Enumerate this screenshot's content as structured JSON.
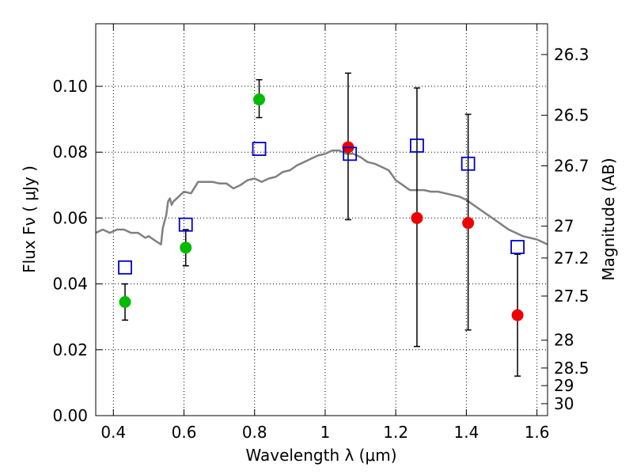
{
  "chart_data": {
    "type": "scatter",
    "xlabel": "Wavelength  λ (μm)",
    "ylabel": "Flux  Fν  ( μJy )",
    "ylabel_right": "Magnitude (AB)",
    "xlim": [
      0.35,
      1.63
    ],
    "ylim": [
      0.0,
      0.119
    ],
    "x_ticks": [
      0.4,
      0.6,
      0.8,
      1.0,
      1.2,
      1.4,
      1.6
    ],
    "x_tick_labels": [
      "0.4",
      "0.6",
      "0.8",
      "1",
      "1.2",
      "1.4",
      "1.6"
    ],
    "y_ticks": [
      0.0,
      0.02,
      0.04,
      0.06,
      0.08,
      0.1
    ],
    "y_tick_labels": [
      "0.00",
      "0.02",
      "0.04",
      "0.06",
      "0.08",
      "0.10"
    ],
    "mag_ticks": [
      26.3,
      26.5,
      26.7,
      27,
      27.2,
      27.5,
      28,
      28.5,
      29,
      30
    ],
    "mag_tick_labels": [
      "26.3",
      "26.5",
      "26.7",
      "27",
      "27.2",
      "27.5",
      "28",
      "28.5",
      "29",
      "30"
    ],
    "grid": true,
    "colors": {
      "model": "#808080",
      "green": "#00bb00",
      "red": "#ee0000",
      "square": "#0000cc"
    },
    "series": [
      {
        "kind": "line",
        "color": "#808080",
        "x": [
          0.35,
          0.37,
          0.39,
          0.41,
          0.43,
          0.45,
          0.47,
          0.49,
          0.5,
          0.52,
          0.535,
          0.54,
          0.55,
          0.555,
          0.56,
          0.565,
          0.57,
          0.6,
          0.62,
          0.64,
          0.66,
          0.68,
          0.7,
          0.72,
          0.74,
          0.76,
          0.78,
          0.8,
          0.82,
          0.84,
          0.86,
          0.88,
          0.9,
          0.92,
          0.94,
          0.96,
          0.98,
          1.0,
          1.02,
          1.04,
          1.06,
          1.08,
          1.1,
          1.12,
          1.14,
          1.16,
          1.18,
          1.2,
          1.22,
          1.24,
          1.26,
          1.28,
          1.3,
          1.32,
          1.34,
          1.36,
          1.38,
          1.4,
          1.42,
          1.44,
          1.46,
          1.48,
          1.5,
          1.52,
          1.54,
          1.56,
          1.58,
          1.6,
          1.63
        ],
        "y": [
          0.0555,
          0.0565,
          0.0555,
          0.0565,
          0.0565,
          0.0555,
          0.0555,
          0.054,
          0.0545,
          0.053,
          0.052,
          0.057,
          0.061,
          0.065,
          0.066,
          0.064,
          0.065,
          0.068,
          0.0675,
          0.071,
          0.071,
          0.071,
          0.0705,
          0.0705,
          0.069,
          0.07,
          0.0715,
          0.072,
          0.071,
          0.072,
          0.0725,
          0.074,
          0.0745,
          0.076,
          0.077,
          0.078,
          0.079,
          0.0795,
          0.0805,
          0.0805,
          0.0795,
          0.0795,
          0.0785,
          0.077,
          0.0765,
          0.0755,
          0.0745,
          0.0715,
          0.07,
          0.0685,
          0.0685,
          0.0685,
          0.068,
          0.068,
          0.0675,
          0.067,
          0.0665,
          0.0655,
          0.064,
          0.0625,
          0.061,
          0.0595,
          0.058,
          0.0565,
          0.0555,
          0.0545,
          0.054,
          0.0535,
          0.052
        ]
      },
      {
        "kind": "errorbar",
        "marker": "circle",
        "color": "#00bb00",
        "x": [
          0.433,
          0.605,
          0.813
        ],
        "y": [
          0.0345,
          0.051,
          0.096
        ],
        "yerr_low": [
          0.0055,
          0.0055,
          0.0055
        ],
        "yerr_high": [
          0.0055,
          0.0055,
          0.006
        ]
      },
      {
        "kind": "errorbar",
        "marker": "circle",
        "color": "#ee0000",
        "x": [
          1.065,
          1.26,
          1.405,
          1.545
        ],
        "y": [
          0.0815,
          0.06,
          0.0585,
          0.0305
        ],
        "yerr_low": [
          0.022,
          0.039,
          0.0325,
          0.0185
        ],
        "yerr_high": [
          0.0225,
          0.0395,
          0.033,
          0.0185
        ]
      },
      {
        "kind": "scatter",
        "marker": "square-open",
        "color": "#0000cc",
        "x": [
          0.433,
          0.605,
          0.813,
          1.07,
          1.26,
          1.405,
          1.545
        ],
        "y": [
          0.045,
          0.058,
          0.081,
          0.0795,
          0.082,
          0.0765,
          0.0512
        ]
      }
    ]
  }
}
